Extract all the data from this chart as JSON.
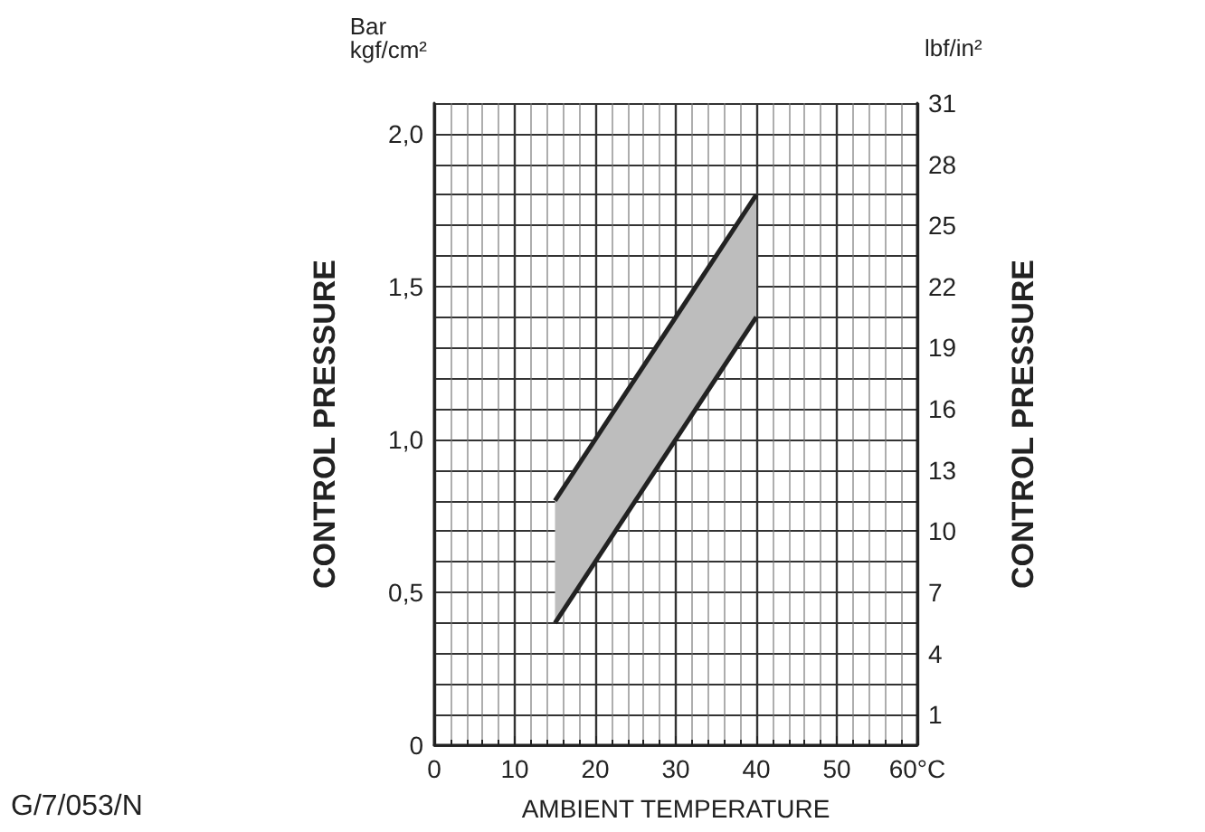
{
  "chart_data": {
    "type": "line",
    "xlabel": "AMBIENT TEMPERATURE",
    "ylabel": "CONTROL PRESSURE",
    "y2label": "CONTROL PRESSURE",
    "annotations": [
      "Bar\nkgf/cm²",
      "lbf/in²",
      "G/7/053/N"
    ],
    "xlim": [
      0,
      60
    ],
    "xticks": [
      0,
      10,
      20,
      30,
      40,
      50,
      {
        "value": 60,
        "label": "60°C"
      }
    ],
    "ylim": [
      0,
      2.1
    ],
    "yticks": [
      0,
      {
        "value": 0.5,
        "label": "0,5"
      },
      {
        "value": 1,
        "label": "1,0"
      },
      {
        "value": 1.5,
        "label": "1,5"
      },
      {
        "value": 2,
        "label": "2,0"
      }
    ],
    "y2lim": [
      -0.5,
      31
    ],
    "y2ticks": [
      1,
      4,
      7,
      10,
      13,
      16,
      19,
      22,
      25,
      28,
      31
    ],
    "x": [
      15,
      40
    ],
    "grid": true,
    "marker": "none",
    "line_style": "solid",
    "series": [
      {
        "color": "#222222",
        "values": [
          0.8,
          1.8
        ],
        "lower": [
          0.4,
          1.4
        ],
        "upper": [
          0.8,
          1.8
        ]
      },
      {
        "color": "#222222",
        "values": [
          0.4,
          1.4
        ]
      }
    ]
  }
}
